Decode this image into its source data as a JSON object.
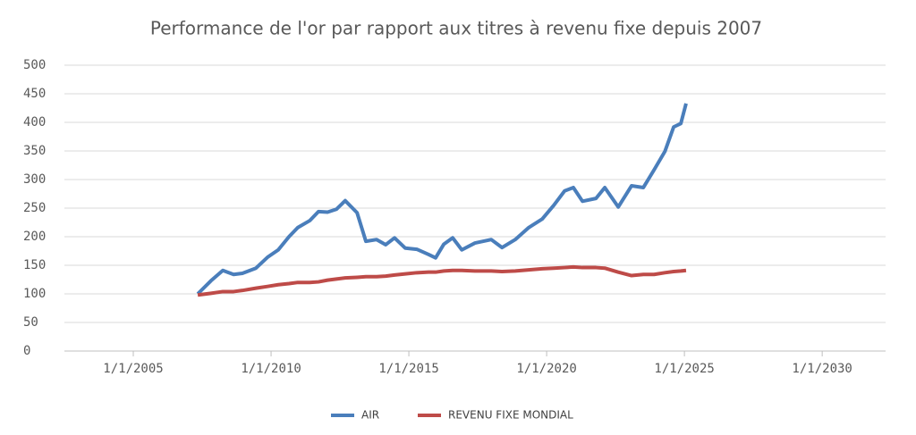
{
  "chart_data": {
    "type": "line",
    "title": "Performance de l'or par rapport aux titres à revenu fixe depuis 2007",
    "x": [
      2007.34,
      2007.82,
      2008.25,
      2008.64,
      2008.96,
      2009.45,
      2009.87,
      2010.26,
      2010.65,
      2010.97,
      2011.4,
      2011.72,
      2012.05,
      2012.37,
      2012.69,
      2013.12,
      2013.44,
      2013.83,
      2014.16,
      2014.48,
      2014.87,
      2015.29,
      2015.71,
      2015.97,
      2016.27,
      2016.59,
      2016.92,
      2017.4,
      2017.99,
      2018.38,
      2018.86,
      2019.35,
      2019.84,
      2020.26,
      2020.65,
      2020.97,
      2021.3,
      2021.79,
      2022.11,
      2022.6,
      2023.08,
      2023.51,
      2023.9,
      2024.29,
      2024.61,
      2024.87,
      2025.06
    ],
    "series": [
      {
        "name": "AIR",
        "color": "#4a7ebb",
        "values": [
          100,
          123,
          141,
          134,
          136,
          145,
          164,
          177,
          200,
          216,
          228,
          244,
          243,
          248,
          263,
          242,
          192,
          195,
          186,
          198,
          180,
          178,
          169,
          163,
          187,
          198,
          177,
          189,
          195,
          181,
          195,
          216,
          231,
          255,
          280,
          286,
          262,
          267,
          286,
          252,
          289,
          286,
          317,
          349,
          392,
          398,
          433
        ]
      },
      {
        "name": "REVENU FIXE MONDIAL",
        "color": "#be4b48",
        "values": [
          98,
          101,
          104,
          104,
          106,
          110,
          113,
          116,
          118,
          120,
          120,
          121,
          124,
          126,
          128,
          129,
          130,
          130,
          131,
          133,
          135,
          137,
          138,
          138,
          140,
          141,
          141,
          140,
          140,
          139,
          140,
          142,
          144,
          145,
          146,
          147,
          146,
          146,
          145,
          138,
          132,
          134,
          134,
          137,
          139,
          140,
          141
        ]
      }
    ],
    "xlim": [
      2002.5,
      2032.3
    ],
    "xticks": [
      {
        "value": 2005,
        "label": "1/1/2005"
      },
      {
        "value": 2010,
        "label": "1/1/2010"
      },
      {
        "value": 2015,
        "label": "1/1/2015"
      },
      {
        "value": 2020,
        "label": "1/1/2020"
      },
      {
        "value": 2025,
        "label": "1/1/2025"
      },
      {
        "value": 2030,
        "label": "1/1/2030"
      }
    ],
    "ylim": [
      0,
      500
    ],
    "yticks": [
      0,
      50,
      100,
      150,
      200,
      250,
      300,
      350,
      400,
      450,
      500
    ],
    "grid": true,
    "legend": "bottom"
  }
}
